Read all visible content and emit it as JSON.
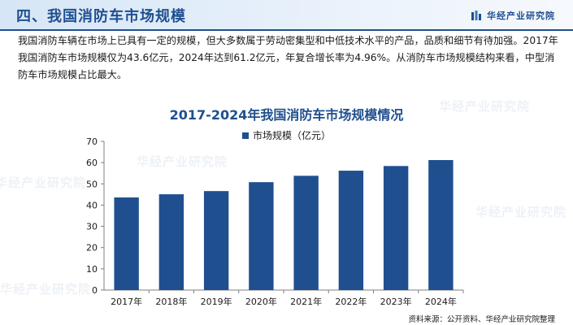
{
  "header": {
    "title": "四、我国消防车市场规模",
    "brand": "华经产业研究院",
    "accent_color": "#1f4f8f",
    "logo_icon": "bar-logo-icon"
  },
  "intro_text": "我国消防车辆在市场上已具有一定的规模，但大多数属于劳动密集型和中低技术水平的产品，品质和细节有待加强。2017年我国消防车市场规模仅为43.6亿元，2024年达到61.2亿元，年复合增长率为4.96%。从消防车市场规模结构来看，中型消防车市场规模占比最大。",
  "watermark": "华经产业研究院",
  "chart_data": {
    "type": "bar",
    "title": "2017-2024年我国消防车市场规模情况",
    "categories": [
      "2017年",
      "2018年",
      "2019年",
      "2020年",
      "2021年",
      "2022年",
      "2023年",
      "2024年"
    ],
    "series": [
      {
        "name": "市场规模（亿元）",
        "values": [
          43.6,
          45.1,
          46.6,
          50.8,
          53.8,
          56.2,
          58.4,
          61.2
        ],
        "color": "#1f4f8f"
      }
    ],
    "xlabel": "",
    "ylabel": "",
    "ylim": [
      0,
      70
    ],
    "yticks": [
      0,
      10,
      20,
      30,
      40,
      50,
      60,
      70
    ],
    "grid": false,
    "legend_position": "top-center"
  },
  "source_text": "资料来源：公开资料、华经产业研究院整理"
}
